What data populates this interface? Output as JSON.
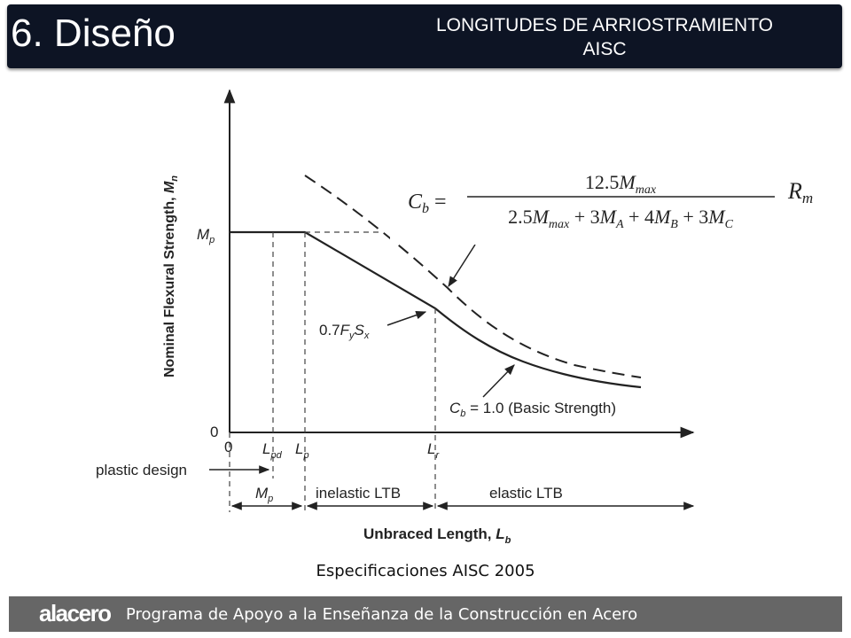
{
  "slide": {
    "title": "6. Diseño",
    "subtitle_line1": "LONGITUDES DE ARRIOSTRAMIENTO",
    "subtitle_line2": "AISC"
  },
  "diagram": {
    "y_axis_label": "Nominal Flexural Strength, Mn",
    "x_axis_label": "Unbraced Length, Lb",
    "y_tick_mp": "Mp",
    "y_tick_zero": "0",
    "x_tick_zero": "0",
    "x_tick_lpd": "Lpd",
    "x_tick_lp": "Lp",
    "x_tick_lr": "Lr",
    "annotation_07": "0.7FySx",
    "annotation_cb1": "Cb = 1.0 (Basic Strength)",
    "zone_plastic_design": "plastic design",
    "zone_mp": "Mp",
    "zone_inelastic": "inelastic LTB",
    "zone_elastic": "elastic LTB",
    "formula_lhs": "Cb =",
    "formula_numerator": "12.5Mmax",
    "formula_denominator": "2.5Mmax + 3MA + 4MB + 3MC",
    "formula_rm": "Rm"
  },
  "caption": "Especificaciones AISC 2005",
  "footer": {
    "logo": "alacero",
    "text": "Programa de Apoyo a la Enseñanza de la Construcción en Acero"
  }
}
